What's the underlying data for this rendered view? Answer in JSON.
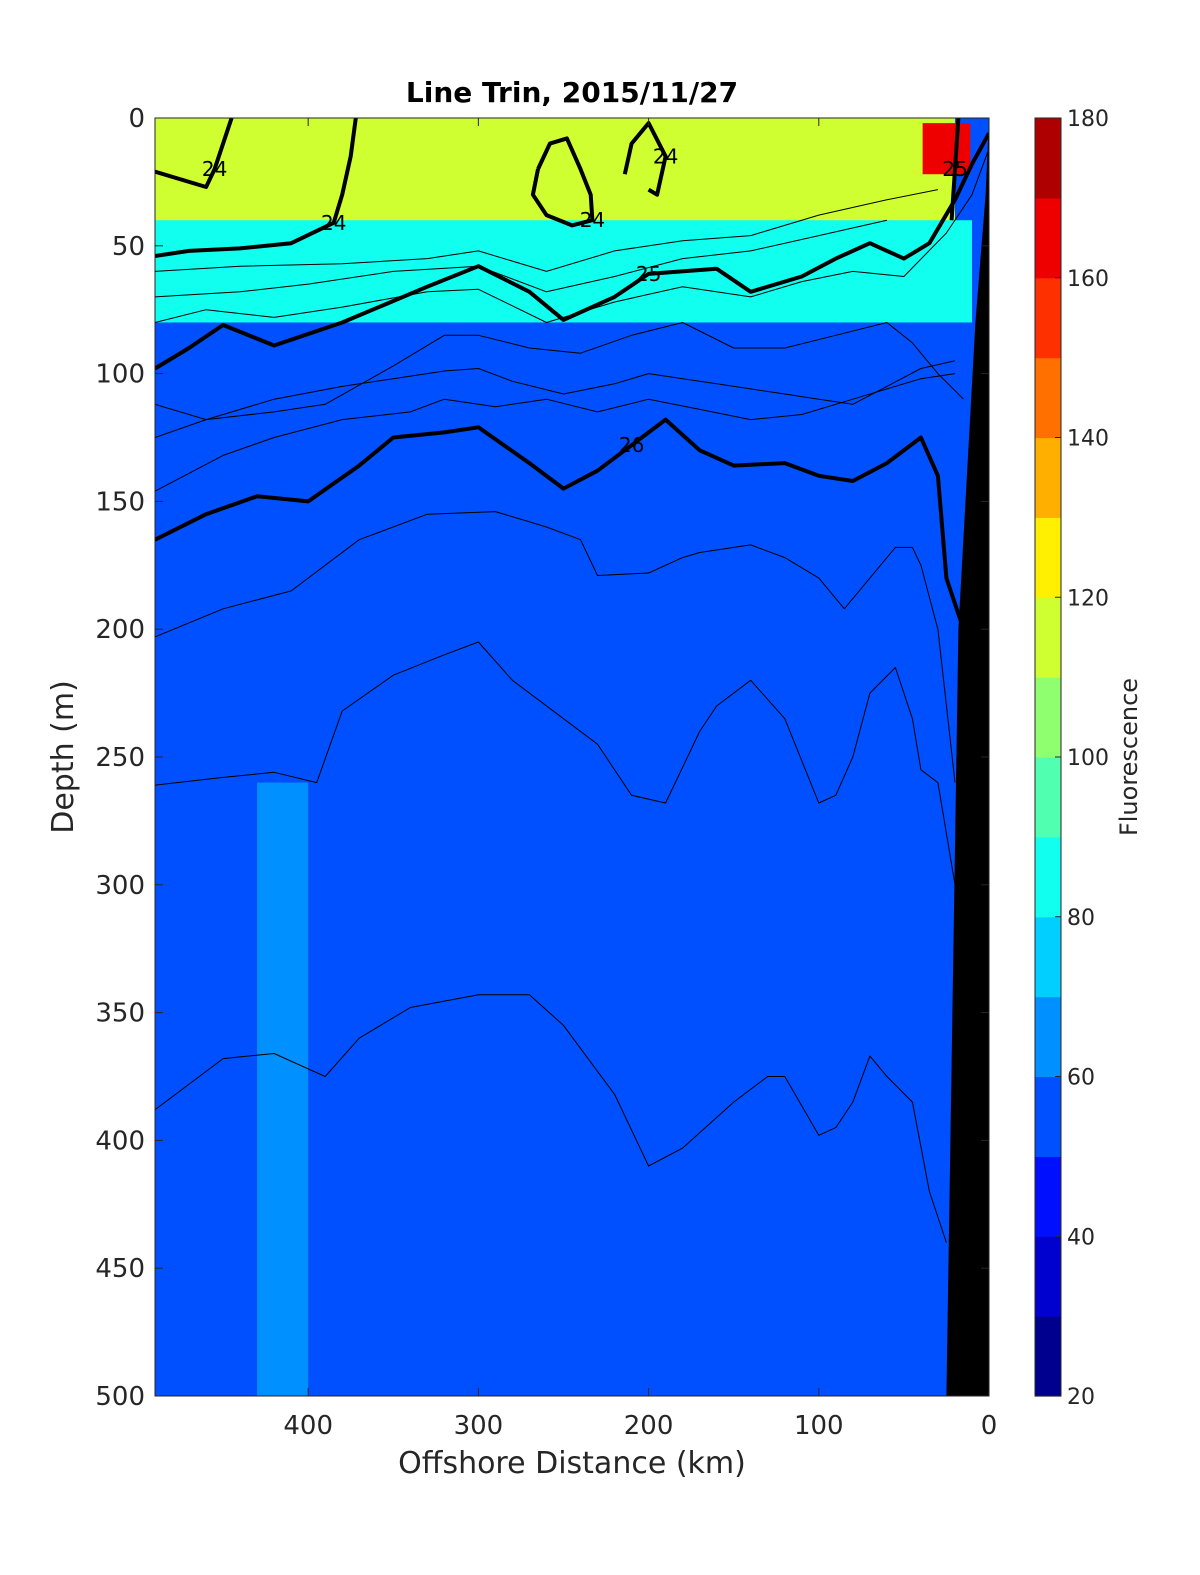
{
  "chart_data": {
    "type": "heatmap",
    "title": "Line Trin, 2015/11/27",
    "xlabel": "Offshore Distance (km)",
    "ylabel": "Depth (m)",
    "colorbar_label": "Fluorescence",
    "xlim": [
      490,
      0
    ],
    "ylim": [
      0,
      500
    ],
    "clim": [
      20,
      180
    ],
    "x_ticks": [
      400,
      300,
      200,
      100,
      0
    ],
    "y_ticks": [
      0,
      50,
      100,
      150,
      200,
      250,
      300,
      350,
      400,
      450,
      500
    ],
    "c_ticks": [
      20,
      40,
      60,
      80,
      100,
      120,
      140,
      160,
      180
    ],
    "colormap": [
      "#00008f",
      "#0000cf",
      "#0010ff",
      "#0050ff",
      "#0090ff",
      "#00cfff",
      "#10ffef",
      "#50ffaf",
      "#90ff6f",
      "#cfff30",
      "#ffef00",
      "#ffaf00",
      "#ff7000",
      "#ff3000",
      "#ef0000",
      "#af0000"
    ],
    "background_level": 55,
    "fluorescence_features": [
      {
        "desc": "surface maximum",
        "x_range": [
          490,
          20
        ],
        "depth_range": [
          0,
          45
        ],
        "value": 115
      },
      {
        "desc": "peak",
        "x": 25,
        "depth": 10,
        "value": 165
      },
      {
        "desc": "mixed-layer cyan band",
        "x_range": [
          490,
          10
        ],
        "depth_range": [
          40,
          80
        ],
        "value": 85
      },
      {
        "desc": "lighter patch",
        "x_range": [
          430,
          400
        ],
        "depth_range": [
          260,
          500
        ],
        "value": 65
      }
    ],
    "contours": [
      {
        "level": "24",
        "bold": true,
        "label": "24",
        "points": [
          [
            490,
            21
          ],
          [
            460,
            27
          ],
          [
            455,
            20
          ],
          [
            445,
            0
          ]
        ]
      },
      {
        "level": "24",
        "bold": true,
        "label": "24",
        "points": [
          [
            490,
            54
          ],
          [
            470,
            52
          ],
          [
            440,
            51
          ],
          [
            410,
            49
          ],
          [
            385,
            41
          ],
          [
            380,
            30
          ],
          [
            375,
            15
          ],
          [
            372,
            0
          ]
        ]
      },
      {
        "level": "24",
        "bold": true,
        "label": "24",
        "points": [
          [
            265,
            20
          ],
          [
            258,
            10
          ],
          [
            248,
            8
          ],
          [
            240,
            20
          ],
          [
            234,
            30
          ],
          [
            233,
            40
          ],
          [
            245,
            42
          ],
          [
            260,
            38
          ],
          [
            268,
            30
          ],
          [
            265,
            20
          ]
        ]
      },
      {
        "level": "24",
        "bold": true,
        "label": "24",
        "points": [
          [
            214,
            22
          ],
          [
            210,
            10
          ],
          [
            200,
            2
          ],
          [
            190,
            15
          ],
          [
            195,
            30
          ],
          [
            200,
            28
          ]
        ]
      },
      {
        "level": "25",
        "bold": true,
        "label": "25",
        "points": [
          [
            490,
            98
          ],
          [
            470,
            90
          ],
          [
            450,
            81
          ],
          [
            420,
            89
          ],
          [
            380,
            80
          ],
          [
            330,
            66
          ],
          [
            300,
            58
          ],
          [
            270,
            68
          ],
          [
            250,
            79
          ],
          [
            220,
            70
          ],
          [
            200,
            61
          ],
          [
            160,
            59
          ],
          [
            140,
            68
          ],
          [
            110,
            62
          ],
          [
            90,
            55
          ],
          [
            70,
            49
          ],
          [
            50,
            55
          ],
          [
            35,
            49
          ],
          [
            20,
            32
          ],
          [
            10,
            18
          ],
          [
            0,
            6
          ]
        ]
      },
      {
        "level": "25",
        "bold": true,
        "label": "25",
        "points": [
          [
            22,
            40
          ],
          [
            20,
            20
          ],
          [
            18,
            0
          ]
        ]
      },
      {
        "level": "26",
        "bold": true,
        "label": "26",
        "points": [
          [
            490,
            165
          ],
          [
            460,
            155
          ],
          [
            430,
            148
          ],
          [
            400,
            150
          ],
          [
            370,
            136
          ],
          [
            350,
            125
          ],
          [
            320,
            123
          ],
          [
            300,
            121
          ],
          [
            270,
            135
          ],
          [
            250,
            145
          ],
          [
            230,
            138
          ],
          [
            210,
            128
          ],
          [
            190,
            118
          ],
          [
            170,
            130
          ],
          [
            150,
            136
          ],
          [
            120,
            135
          ],
          [
            100,
            140
          ],
          [
            80,
            142
          ],
          [
            60,
            135
          ],
          [
            40,
            125
          ],
          [
            30,
            140
          ],
          [
            25,
            180
          ],
          [
            15,
            200
          ]
        ]
      },
      {
        "level": "",
        "bold": false,
        "label": "",
        "points": [
          [
            490,
            60
          ],
          [
            440,
            58
          ],
          [
            380,
            57
          ],
          [
            330,
            55
          ],
          [
            300,
            52
          ],
          [
            260,
            60
          ],
          [
            220,
            52
          ],
          [
            180,
            48
          ],
          [
            140,
            46
          ],
          [
            100,
            38
          ],
          [
            60,
            32
          ],
          [
            30,
            28
          ]
        ]
      },
      {
        "level": "",
        "bold": false,
        "label": "",
        "points": [
          [
            490,
            70
          ],
          [
            440,
            68
          ],
          [
            400,
            65
          ],
          [
            350,
            60
          ],
          [
            300,
            58
          ],
          [
            260,
            68
          ],
          [
            220,
            62
          ],
          [
            180,
            55
          ],
          [
            140,
            52
          ],
          [
            100,
            46
          ],
          [
            60,
            40
          ]
        ]
      },
      {
        "level": "",
        "bold": false,
        "label": "",
        "points": [
          [
            490,
            80
          ],
          [
            460,
            75
          ],
          [
            420,
            78
          ],
          [
            380,
            74
          ],
          [
            330,
            68
          ],
          [
            300,
            67
          ],
          [
            260,
            80
          ],
          [
            220,
            72
          ],
          [
            180,
            66
          ],
          [
            140,
            70
          ],
          [
            110,
            64
          ],
          [
            80,
            60
          ],
          [
            50,
            62
          ],
          [
            25,
            45
          ],
          [
            10,
            30
          ],
          [
            0,
            12
          ]
        ]
      },
      {
        "level": "",
        "bold": false,
        "label": "",
        "points": [
          [
            490,
            112
          ],
          [
            460,
            118
          ],
          [
            420,
            115
          ],
          [
            390,
            112
          ],
          [
            350,
            97
          ],
          [
            320,
            85
          ],
          [
            300,
            85
          ],
          [
            270,
            90
          ],
          [
            240,
            92
          ],
          [
            210,
            85
          ],
          [
            180,
            80
          ],
          [
            150,
            90
          ],
          [
            120,
            90
          ],
          [
            90,
            85
          ],
          [
            60,
            80
          ],
          [
            45,
            88
          ],
          [
            30,
            100
          ],
          [
            15,
            110
          ]
        ]
      },
      {
        "level": "",
        "bold": false,
        "label": "",
        "points": [
          [
            490,
            125
          ],
          [
            460,
            118
          ],
          [
            420,
            110
          ],
          [
            380,
            105
          ],
          [
            350,
            102
          ],
          [
            320,
            99
          ],
          [
            300,
            98
          ],
          [
            280,
            103
          ],
          [
            250,
            108
          ],
          [
            220,
            104
          ],
          [
            200,
            100
          ],
          [
            160,
            104
          ],
          [
            120,
            108
          ],
          [
            100,
            110
          ],
          [
            80,
            112
          ],
          [
            60,
            105
          ],
          [
            40,
            98
          ],
          [
            20,
            95
          ]
        ]
      },
      {
        "level": "",
        "bold": false,
        "label": "",
        "points": [
          [
            490,
            146
          ],
          [
            450,
            132
          ],
          [
            420,
            125
          ],
          [
            380,
            118
          ],
          [
            340,
            115
          ],
          [
            320,
            110
          ],
          [
            290,
            113
          ],
          [
            260,
            110
          ],
          [
            230,
            115
          ],
          [
            200,
            110
          ],
          [
            170,
            114
          ],
          [
            140,
            118
          ],
          [
            110,
            116
          ],
          [
            80,
            110
          ],
          [
            60,
            106
          ],
          [
            40,
            102
          ],
          [
            20,
            100
          ]
        ]
      },
      {
        "level": "",
        "bold": false,
        "label": "",
        "points": [
          [
            490,
            203
          ],
          [
            450,
            192
          ],
          [
            410,
            185
          ],
          [
            370,
            165
          ],
          [
            330,
            155
          ],
          [
            290,
            154
          ],
          [
            260,
            160
          ],
          [
            240,
            165
          ],
          [
            230,
            179
          ],
          [
            200,
            178
          ],
          [
            180,
            172
          ],
          [
            170,
            170
          ],
          [
            140,
            167
          ],
          [
            120,
            172
          ],
          [
            100,
            180
          ],
          [
            85,
            192
          ],
          [
            70,
            180
          ],
          [
            55,
            168
          ],
          [
            45,
            168
          ],
          [
            40,
            175
          ],
          [
            30,
            200
          ],
          [
            20,
            260
          ]
        ]
      },
      {
        "level": "",
        "bold": false,
        "label": "",
        "points": [
          [
            490,
            261
          ],
          [
            450,
            258
          ],
          [
            420,
            256
          ],
          [
            395,
            260
          ],
          [
            380,
            232
          ],
          [
            350,
            218
          ],
          [
            320,
            210
          ],
          [
            300,
            205
          ],
          [
            280,
            220
          ],
          [
            250,
            235
          ],
          [
            230,
            245
          ],
          [
            210,
            265
          ],
          [
            190,
            268
          ],
          [
            170,
            240
          ],
          [
            160,
            230
          ],
          [
            140,
            220
          ],
          [
            120,
            235
          ],
          [
            100,
            268
          ],
          [
            90,
            265
          ],
          [
            80,
            250
          ],
          [
            70,
            225
          ],
          [
            55,
            215
          ],
          [
            45,
            235
          ],
          [
            40,
            255
          ],
          [
            30,
            260
          ],
          [
            20,
            300
          ]
        ]
      },
      {
        "level": "",
        "bold": false,
        "label": "",
        "points": [
          [
            490,
            388
          ],
          [
            450,
            368
          ],
          [
            420,
            366
          ],
          [
            390,
            375
          ],
          [
            370,
            360
          ],
          [
            340,
            348
          ],
          [
            300,
            343
          ],
          [
            270,
            343
          ],
          [
            250,
            355
          ],
          [
            220,
            382
          ],
          [
            200,
            410
          ],
          [
            180,
            403
          ],
          [
            150,
            385
          ],
          [
            130,
            375
          ],
          [
            120,
            375
          ],
          [
            100,
            398
          ],
          [
            90,
            395
          ],
          [
            80,
            385
          ],
          [
            70,
            367
          ],
          [
            60,
            375
          ],
          [
            45,
            385
          ],
          [
            35,
            420
          ],
          [
            25,
            440
          ]
        ]
      }
    ]
  }
}
